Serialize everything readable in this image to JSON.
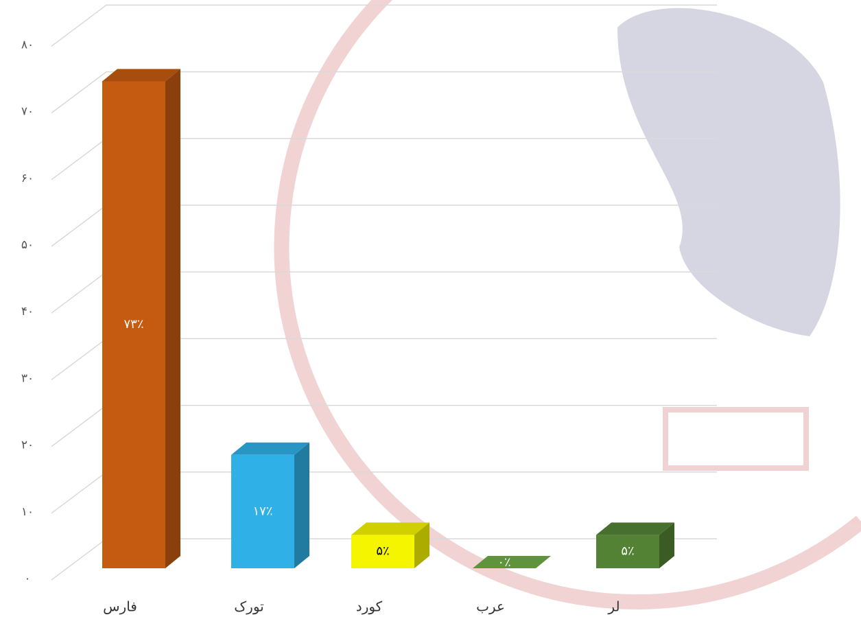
{
  "chart_data": {
    "type": "bar3d",
    "categories": [
      "فارس",
      "تورک",
      "کورد",
      "عرب",
      "لر"
    ],
    "values": [
      73,
      17,
      5,
      0,
      5
    ],
    "value_labels": [
      "۷۳٪",
      "۱۷٪",
      "۵٪",
      "۰٪",
      "۵٪"
    ],
    "colors": [
      "#c55a11",
      "#2fb0e6",
      "#f5f500",
      "#70ad47",
      "#548235"
    ],
    "label_colors": [
      "#ffffff",
      "#ffffff",
      "#000000",
      "#ffffff",
      "#ffffff"
    ],
    "ylim": [
      0,
      80
    ],
    "yticks": [
      {
        "value": 0,
        "label": "۰"
      },
      {
        "value": 10,
        "label": "۱۰"
      },
      {
        "value": 20,
        "label": "۲۰"
      },
      {
        "value": 30,
        "label": "۳۰"
      },
      {
        "value": 40,
        "label": "۴۰"
      },
      {
        "value": 50,
        "label": "۵۰"
      },
      {
        "value": 60,
        "label": "۶۰"
      },
      {
        "value": 70,
        "label": "۷۰"
      },
      {
        "value": 80,
        "label": "۸۰"
      }
    ],
    "grid": true
  }
}
